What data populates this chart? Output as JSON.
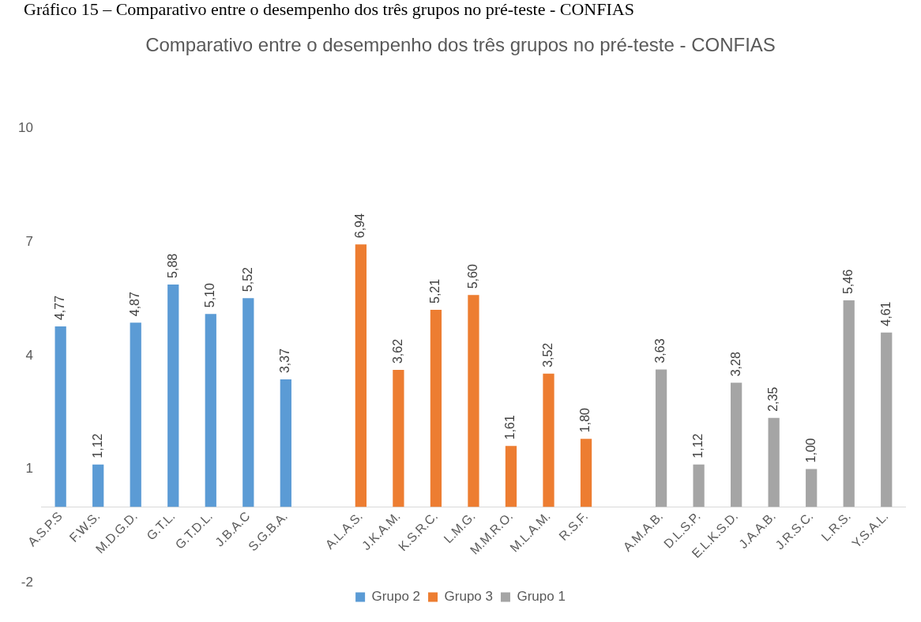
{
  "chart_data": {
    "type": "bar",
    "title": "Comparativo entre o desempenho dos três grupos no pré-teste - CONFIAS",
    "annotations": [
      "Gráfico 15 – Comparativo entre o desempenho dos três grupos no pré-teste - CONFIAS"
    ],
    "categories": [
      "A.S.P.S",
      "F.W.S.",
      "M.D.G.D.",
      "G.T.L.",
      "G.T.D.L.",
      "J.B.A.C",
      "S.G.B.A.",
      null,
      "A.L.A.S.",
      "J.K.A.M.",
      "K.S.R.C.",
      "L.M.G.",
      "M.M.R.O.",
      "M.L.A.M.",
      "R.S.F.",
      null,
      "A.M.A.B.",
      "D.L.S.P.",
      "E.L.K.S.D.",
      "J.A.A.B.",
      "J.R.S.C.",
      "L.R.S.",
      "Y.S.A.L."
    ],
    "series": [
      {
        "name": "Grupo 2",
        "color": "#5b9bd5",
        "values": [
          4.77,
          1.12,
          4.87,
          5.88,
          5.1,
          5.52,
          3.37,
          null,
          null,
          null,
          null,
          null,
          null,
          null,
          null,
          null,
          null,
          null,
          null,
          null,
          null,
          null,
          null
        ],
        "value_labels": [
          "4,77",
          "1,12",
          "4,87",
          "5,88",
          "5,10",
          "5,52",
          "3,37",
          null,
          null,
          null,
          null,
          null,
          null,
          null,
          null,
          null,
          null,
          null,
          null,
          null,
          null,
          null,
          null
        ]
      },
      {
        "name": "Grupo 3",
        "color": "#ed7d31",
        "values": [
          null,
          null,
          null,
          null,
          null,
          null,
          null,
          null,
          6.94,
          3.62,
          5.21,
          5.6,
          1.61,
          3.52,
          1.8,
          null,
          null,
          null,
          null,
          null,
          null,
          null,
          null
        ],
        "value_labels": [
          null,
          null,
          null,
          null,
          null,
          null,
          null,
          null,
          "6,94",
          "3,62",
          "5,21",
          "5,60",
          "1,61",
          "3,52",
          "1,80",
          null,
          null,
          null,
          null,
          null,
          null,
          null,
          null
        ]
      },
      {
        "name": "Grupo 1",
        "color": "#a5a5a5",
        "values": [
          null,
          null,
          null,
          null,
          null,
          null,
          null,
          null,
          null,
          null,
          null,
          null,
          null,
          null,
          null,
          null,
          3.63,
          1.12,
          3.28,
          2.35,
          1.0,
          5.46,
          4.61
        ],
        "value_labels": [
          null,
          null,
          null,
          null,
          null,
          null,
          null,
          null,
          null,
          null,
          null,
          null,
          null,
          null,
          null,
          null,
          "3,63",
          "1,12",
          "3,28",
          "2,35",
          "1,00",
          "5,46",
          "4,61"
        ]
      }
    ],
    "ylim": [
      -2,
      10
    ],
    "yticks": [
      -2,
      1,
      4,
      7,
      10
    ],
    "grid": false,
    "legend": "bottom"
  }
}
